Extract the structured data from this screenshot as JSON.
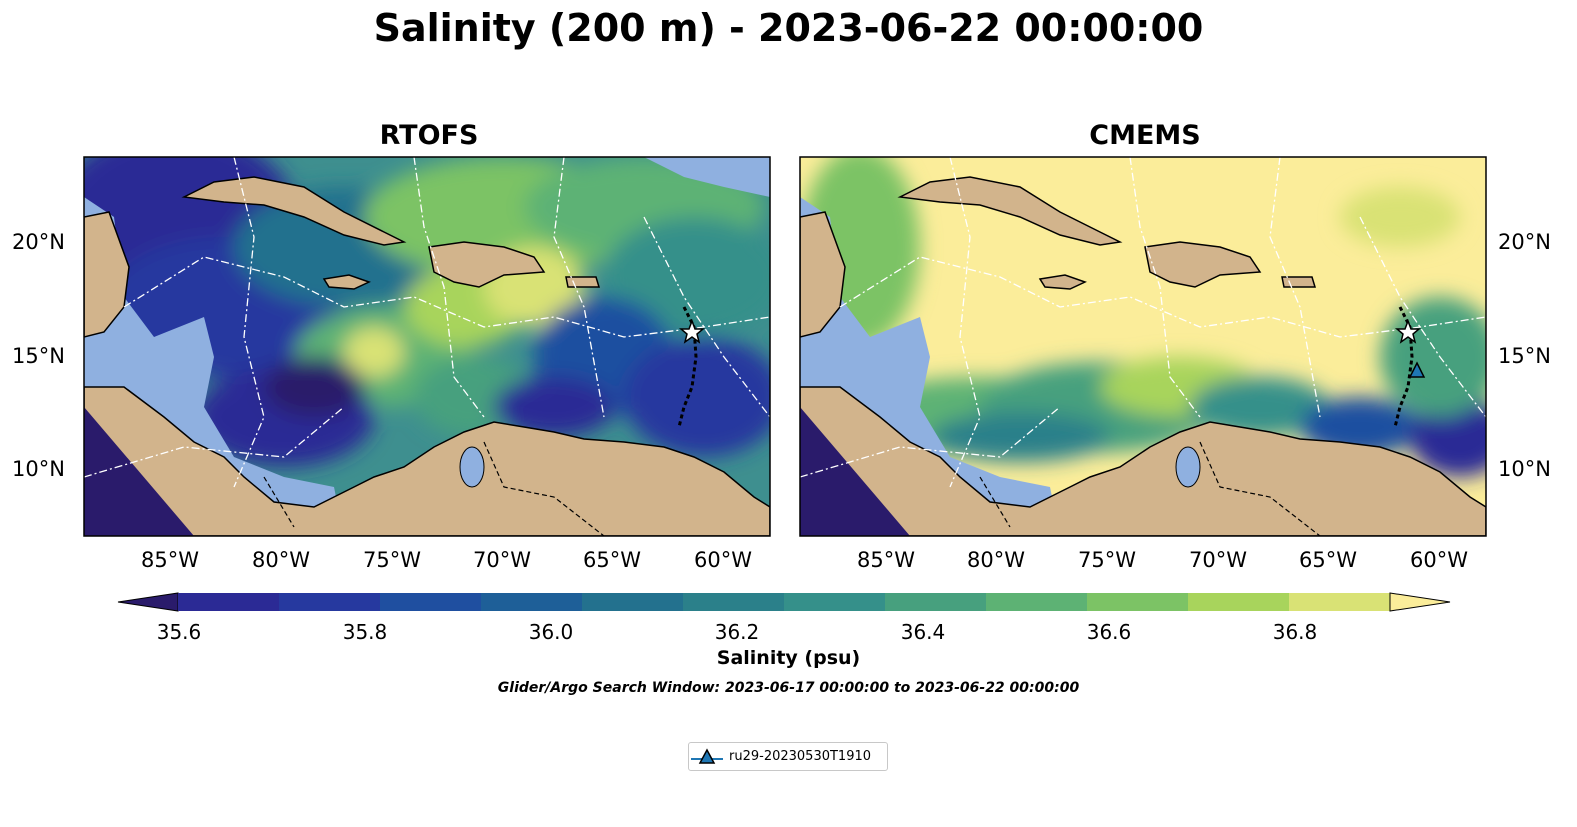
{
  "title": "Salinity (200 m) - 2023-06-22 00:00:00",
  "panels": [
    {
      "title": "RTOFS"
    },
    {
      "title": "CMEMS"
    }
  ],
  "lon_ticks": [
    "85°W",
    "80°W",
    "75°W",
    "70°W",
    "65°W",
    "60°W"
  ],
  "lat_ticks": [
    "20°N",
    "15°N",
    "10°N"
  ],
  "map_extent": {
    "lon": [
      -89,
      -58
    ],
    "lat": [
      7,
      24
    ]
  },
  "colorbar": {
    "label": "Salinity (psu)",
    "range": [
      35.6,
      36.9
    ],
    "ticks": [
      "35.6",
      "35.8",
      "36.0",
      "36.2",
      "36.4",
      "36.6",
      "36.8"
    ],
    "colors": [
      "#2a1b6b",
      "#2b2a95",
      "#26399f",
      "#1f4fa0",
      "#1e5f98",
      "#23718e",
      "#2b808a",
      "#35908a",
      "#47a07e",
      "#5db274",
      "#7cc365",
      "#a8d45c",
      "#d9e275",
      "#fbed9a"
    ]
  },
  "search_window": "Glider/Argo Search Window: 2023-06-17 00:00:00 to 2023-06-22 00:00:00",
  "legend": {
    "label": "ru29-20230530T1910",
    "marker": "triangle-icon",
    "color": "#1f77b4"
  },
  "land_color": "#d2b48c",
  "shelf_color": "#8fb0e0"
}
